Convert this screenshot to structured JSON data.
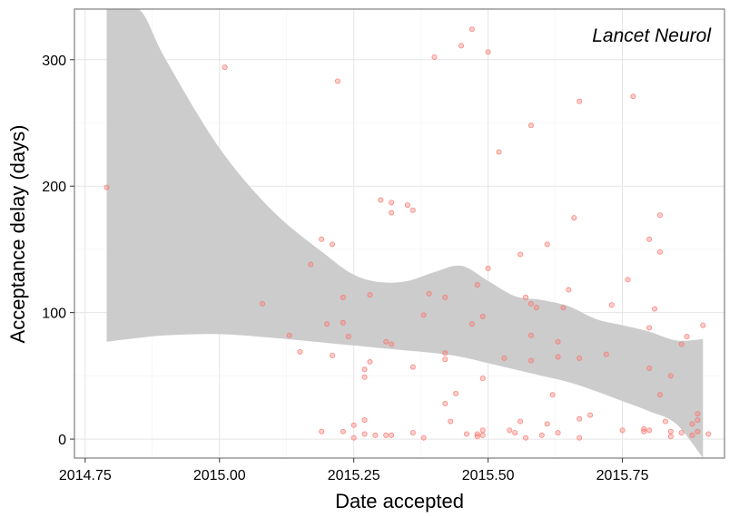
{
  "chart_data": {
    "type": "scatter",
    "title": "",
    "annotation": "Lancet Neurol",
    "xlabel": "Date accepted",
    "ylabel": "Acceptance delay (days)",
    "xlim": [
      2014.73,
      2015.94
    ],
    "ylim": [
      -15,
      340
    ],
    "x_ticks": [
      2014.75,
      2015.0,
      2015.25,
      2015.5,
      2015.75
    ],
    "x_tick_labels": [
      "2014.75",
      "2015.00",
      "2015.25",
      "2015.50",
      "2015.75"
    ],
    "y_ticks": [
      0,
      100,
      200,
      300
    ],
    "y_tick_labels": [
      "0",
      "100",
      "200",
      "300"
    ],
    "grid": true,
    "point_color": "#f8766d",
    "band_color": "#cccccc",
    "points": [
      {
        "x": 2014.79,
        "y": 199
      },
      {
        "x": 2015.01,
        "y": 294
      },
      {
        "x": 2015.08,
        "y": 107
      },
      {
        "x": 2015.13,
        "y": 82
      },
      {
        "x": 2015.15,
        "y": 69
      },
      {
        "x": 2015.17,
        "y": 138
      },
      {
        "x": 2015.19,
        "y": 158
      },
      {
        "x": 2015.19,
        "y": 6
      },
      {
        "x": 2015.2,
        "y": 91
      },
      {
        "x": 2015.21,
        "y": 66
      },
      {
        "x": 2015.21,
        "y": 154
      },
      {
        "x": 2015.22,
        "y": 283
      },
      {
        "x": 2015.23,
        "y": 112
      },
      {
        "x": 2015.23,
        "y": 92
      },
      {
        "x": 2015.23,
        "y": 6
      },
      {
        "x": 2015.24,
        "y": 81
      },
      {
        "x": 2015.25,
        "y": 11
      },
      {
        "x": 2015.25,
        "y": 1
      },
      {
        "x": 2015.27,
        "y": 55
      },
      {
        "x": 2015.27,
        "y": 49
      },
      {
        "x": 2015.27,
        "y": 15
      },
      {
        "x": 2015.27,
        "y": 4
      },
      {
        "x": 2015.28,
        "y": 114
      },
      {
        "x": 2015.28,
        "y": 61
      },
      {
        "x": 2015.29,
        "y": 3
      },
      {
        "x": 2015.3,
        "y": 189
      },
      {
        "x": 2015.31,
        "y": 77
      },
      {
        "x": 2015.31,
        "y": 3
      },
      {
        "x": 2015.32,
        "y": 187
      },
      {
        "x": 2015.32,
        "y": 179
      },
      {
        "x": 2015.32,
        "y": 75
      },
      {
        "x": 2015.32,
        "y": 3
      },
      {
        "x": 2015.35,
        "y": 185
      },
      {
        "x": 2015.36,
        "y": 181
      },
      {
        "x": 2015.36,
        "y": 57
      },
      {
        "x": 2015.36,
        "y": 5
      },
      {
        "x": 2015.38,
        "y": 98
      },
      {
        "x": 2015.38,
        "y": 1
      },
      {
        "x": 2015.39,
        "y": 115
      },
      {
        "x": 2015.4,
        "y": 302
      },
      {
        "x": 2015.42,
        "y": 112
      },
      {
        "x": 2015.42,
        "y": 68
      },
      {
        "x": 2015.42,
        "y": 63
      },
      {
        "x": 2015.42,
        "y": 28
      },
      {
        "x": 2015.43,
        "y": 14
      },
      {
        "x": 2015.44,
        "y": 36
      },
      {
        "x": 2015.45,
        "y": 311
      },
      {
        "x": 2015.46,
        "y": 4
      },
      {
        "x": 2015.47,
        "y": 324
      },
      {
        "x": 2015.47,
        "y": 91
      },
      {
        "x": 2015.48,
        "y": 122
      },
      {
        "x": 2015.48,
        "y": 4
      },
      {
        "x": 2015.48,
        "y": 2
      },
      {
        "x": 2015.49,
        "y": 97
      },
      {
        "x": 2015.49,
        "y": 48
      },
      {
        "x": 2015.49,
        "y": 7
      },
      {
        "x": 2015.49,
        "y": 3
      },
      {
        "x": 2015.5,
        "y": 306
      },
      {
        "x": 2015.5,
        "y": 135
      },
      {
        "x": 2015.52,
        "y": 227
      },
      {
        "x": 2015.53,
        "y": 64
      },
      {
        "x": 2015.54,
        "y": 7
      },
      {
        "x": 2015.55,
        "y": 5
      },
      {
        "x": 2015.56,
        "y": 146
      },
      {
        "x": 2015.56,
        "y": 14
      },
      {
        "x": 2015.57,
        "y": 1
      },
      {
        "x": 2015.57,
        "y": 112
      },
      {
        "x": 2015.58,
        "y": 248
      },
      {
        "x": 2015.58,
        "y": 107
      },
      {
        "x": 2015.58,
        "y": 82
      },
      {
        "x": 2015.58,
        "y": 62
      },
      {
        "x": 2015.59,
        "y": 104
      },
      {
        "x": 2015.6,
        "y": 3
      },
      {
        "x": 2015.61,
        "y": 154
      },
      {
        "x": 2015.61,
        "y": 12
      },
      {
        "x": 2015.62,
        "y": 35
      },
      {
        "x": 2015.63,
        "y": 77
      },
      {
        "x": 2015.63,
        "y": 65
      },
      {
        "x": 2015.63,
        "y": 5
      },
      {
        "x": 2015.64,
        "y": 104
      },
      {
        "x": 2015.65,
        "y": 118
      },
      {
        "x": 2015.66,
        "y": 175
      },
      {
        "x": 2015.67,
        "y": 267
      },
      {
        "x": 2015.67,
        "y": 64
      },
      {
        "x": 2015.67,
        "y": 16
      },
      {
        "x": 2015.67,
        "y": 1
      },
      {
        "x": 2015.69,
        "y": 19
      },
      {
        "x": 2015.72,
        "y": 67
      },
      {
        "x": 2015.73,
        "y": 106
      },
      {
        "x": 2015.75,
        "y": 7
      },
      {
        "x": 2015.76,
        "y": 126
      },
      {
        "x": 2015.77,
        "y": 271
      },
      {
        "x": 2015.79,
        "y": 8
      },
      {
        "x": 2015.79,
        "y": 6
      },
      {
        "x": 2015.8,
        "y": 158
      },
      {
        "x": 2015.8,
        "y": 88
      },
      {
        "x": 2015.8,
        "y": 56
      },
      {
        "x": 2015.8,
        "y": 7
      },
      {
        "x": 2015.81,
        "y": 103
      },
      {
        "x": 2015.82,
        "y": 177
      },
      {
        "x": 2015.82,
        "y": 148
      },
      {
        "x": 2015.82,
        "y": 35
      },
      {
        "x": 2015.83,
        "y": 14
      },
      {
        "x": 2015.84,
        "y": 50
      },
      {
        "x": 2015.84,
        "y": 6
      },
      {
        "x": 2015.84,
        "y": 2
      },
      {
        "x": 2015.86,
        "y": 75
      },
      {
        "x": 2015.86,
        "y": 5
      },
      {
        "x": 2015.87,
        "y": 81
      },
      {
        "x": 2015.88,
        "y": 3
      },
      {
        "x": 2015.88,
        "y": 12
      },
      {
        "x": 2015.89,
        "y": 20
      },
      {
        "x": 2015.89,
        "y": 15
      },
      {
        "x": 2015.89,
        "y": 6
      },
      {
        "x": 2015.9,
        "y": 90
      },
      {
        "x": 2015.91,
        "y": 4
      }
    ],
    "smooth_band": {
      "x": [
        2014.79,
        2014.85,
        2014.9,
        2015.0,
        2015.1,
        2015.2,
        2015.25,
        2015.3,
        2015.35,
        2015.4,
        2015.45,
        2015.5,
        2015.55,
        2015.6,
        2015.65,
        2015.7,
        2015.75,
        2015.8,
        2015.85,
        2015.9
      ],
      "upper": [
        340,
        340,
        300,
        230,
        180,
        145,
        130,
        124,
        125,
        132,
        137,
        125,
        113,
        110,
        105,
        95,
        90,
        85,
        78,
        79
      ],
      "lower": [
        77,
        80,
        82,
        83,
        80,
        76,
        74,
        72,
        70,
        68,
        65,
        60,
        55,
        50,
        45,
        38,
        30,
        22,
        12,
        -15
      ]
    }
  }
}
